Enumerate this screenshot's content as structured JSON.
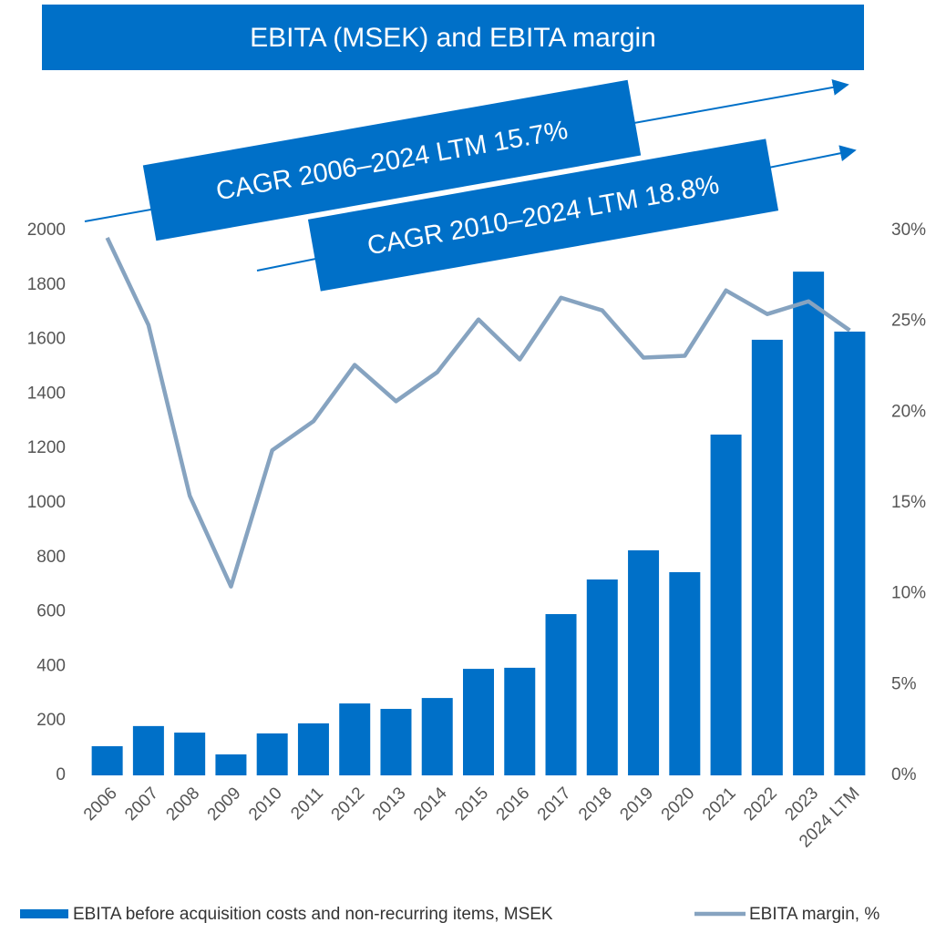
{
  "chart_data": {
    "type": "bar",
    "title": "EBITA (MSEK) and EBITA margin",
    "annotations": [
      "CAGR 2006–2024 LTM 15.7%",
      "CAGR 2010–2024 LTM 18.8%"
    ],
    "categories": [
      "2006",
      "2007",
      "2008",
      "2009",
      "2010",
      "2011",
      "2012",
      "2013",
      "2014",
      "2015",
      "2016",
      "2017",
      "2018",
      "2019",
      "2020",
      "2021",
      "2022",
      "2023",
      "2024 LTM"
    ],
    "series": [
      {
        "name": "EBITA before acquisition costs and non-recurring items, MSEK",
        "type": "bar",
        "color": "#0070c8",
        "values": [
          107,
          181,
          157,
          77,
          154,
          191,
          264,
          244,
          284,
          391,
          395,
          592,
          719,
          826,
          746,
          1251,
          1599,
          1849,
          1629
        ]
      },
      {
        "name": "EBITA margin, %",
        "type": "line",
        "axis": "y2",
        "color": "#86a3c0",
        "values": [
          29.6,
          24.8,
          15.4,
          10.4,
          17.9,
          19.5,
          22.6,
          20.6,
          22.2,
          25.1,
          22.9,
          26.3,
          25.6,
          23.0,
          23.1,
          26.7,
          25.4,
          26.1,
          24.5
        ]
      }
    ],
    "ylim": [
      0,
      2000
    ],
    "yticks": [
      0,
      200,
      400,
      600,
      800,
      1000,
      1200,
      1400,
      1600,
      1800,
      2000
    ],
    "y2lim": [
      0,
      30
    ],
    "y2ticks": [
      {
        "value": 0,
        "label": "0%"
      },
      {
        "value": 5,
        "label": "5%"
      },
      {
        "value": 10,
        "label": "10%"
      },
      {
        "value": 15,
        "label": "15%"
      },
      {
        "value": 20,
        "label": "20%"
      },
      {
        "value": 25,
        "label": "25%"
      },
      {
        "value": 30,
        "label": "30%"
      }
    ],
    "grid": false
  }
}
